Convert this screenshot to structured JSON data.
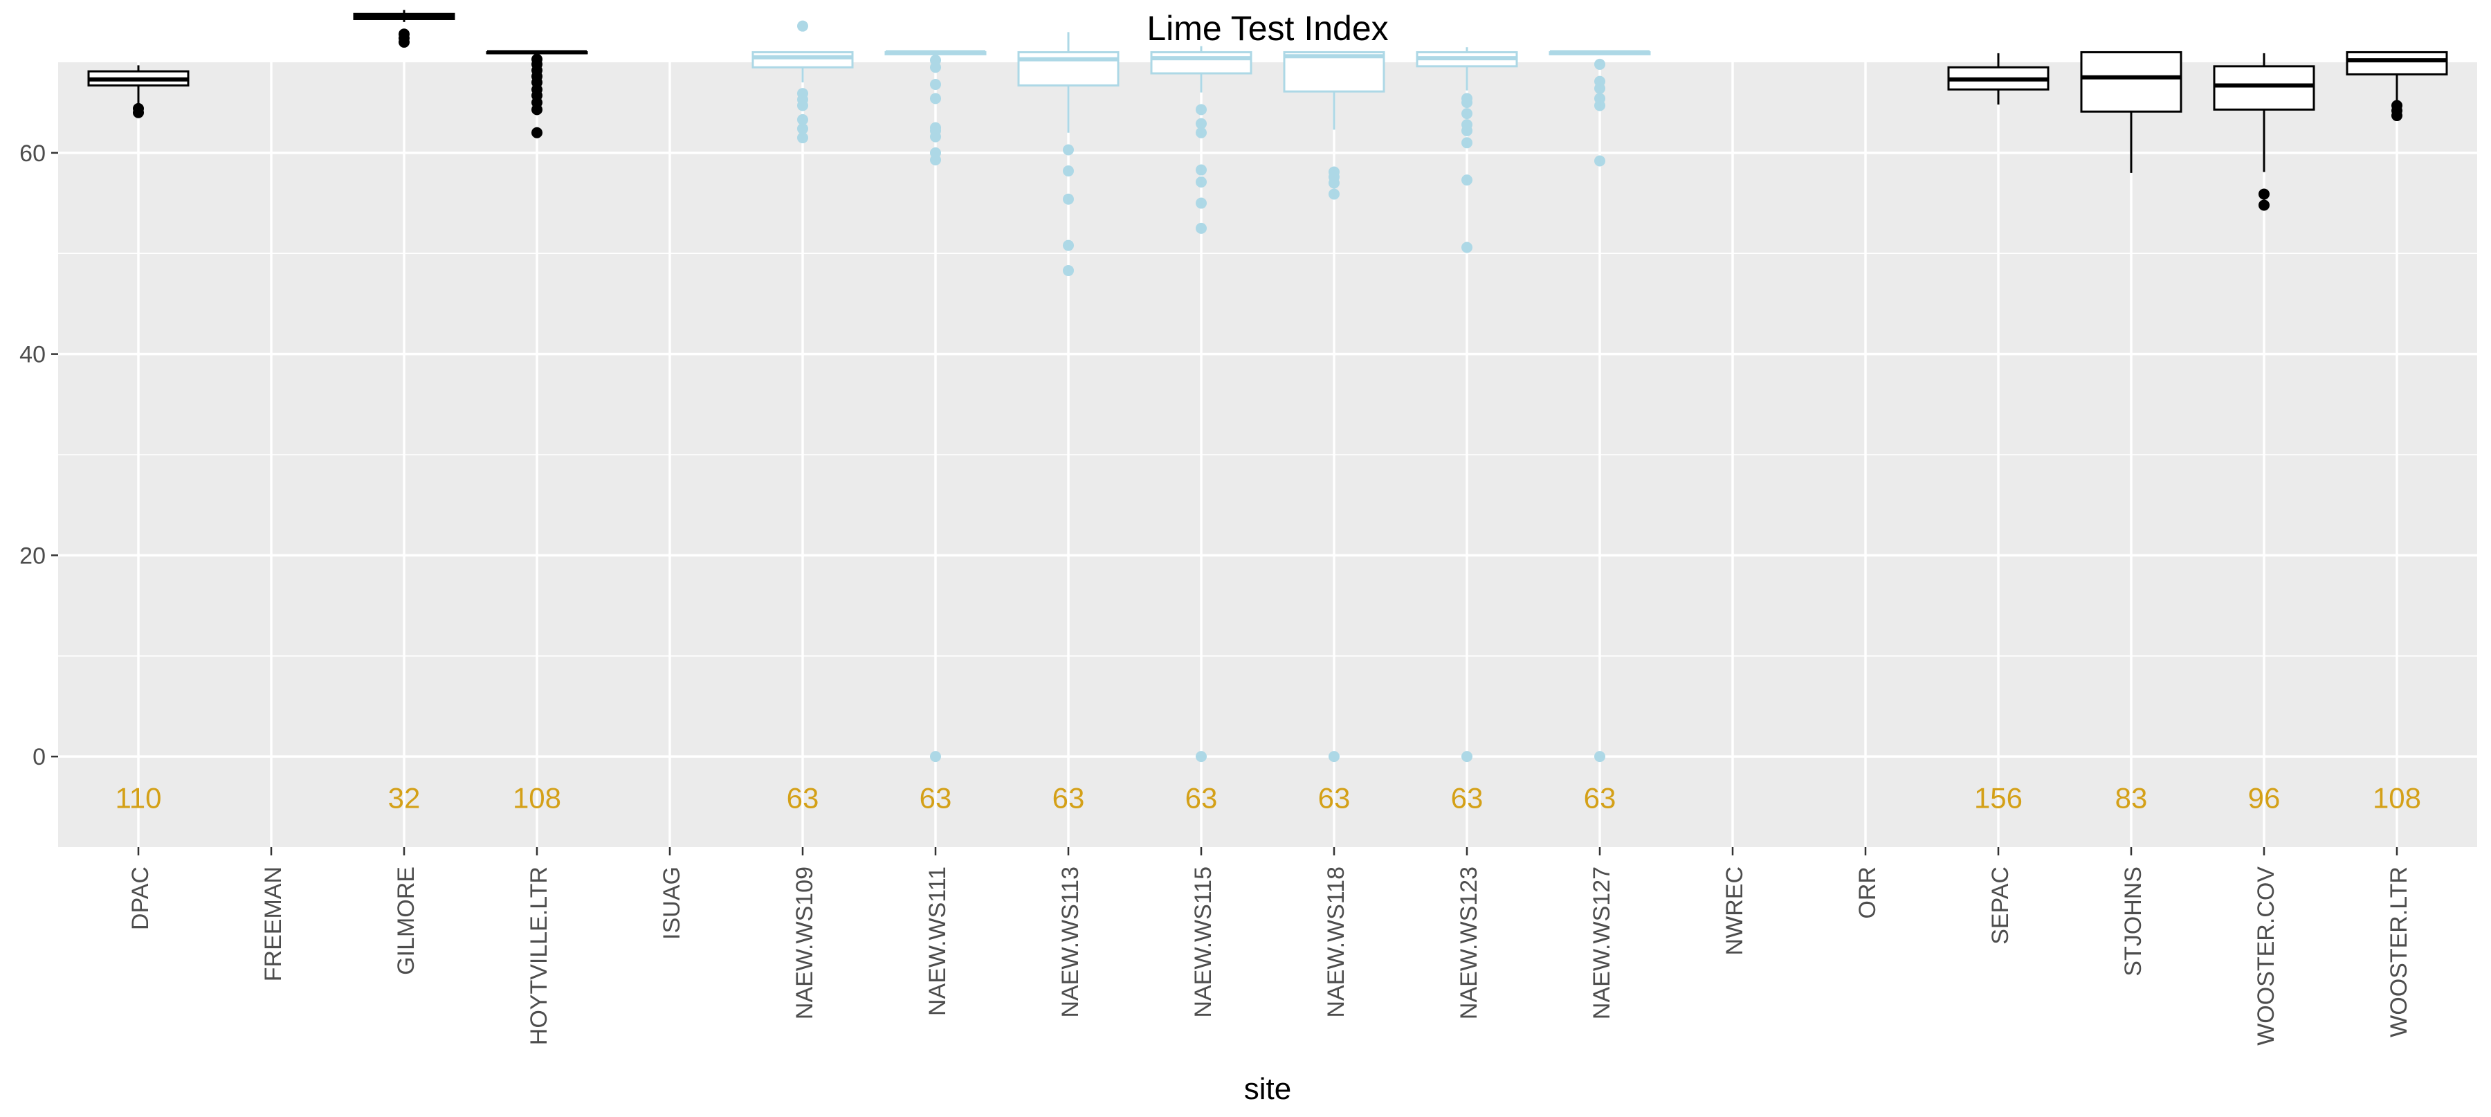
{
  "chart_data": {
    "type": "boxplot",
    "title": "Lime Test Index",
    "xlabel": "site",
    "ylabel": "",
    "ylim": [
      -9,
      69
    ],
    "yticks": [
      0,
      20,
      40,
      60
    ],
    "grid": true,
    "legend": "none",
    "colors": {
      "panel": "#EBEBEB",
      "grid_major": "#FFFFFF",
      "box_default": "#000000",
      "box_highlight": "#ADD8E6",
      "count_label": "#D4A017",
      "axis_text": "#4D4D4D",
      "title": "#000000"
    },
    "categories": [
      "DPAC",
      "FREEMAN",
      "GILMORE",
      "HOYTVILLE.LTR",
      "ISUAG",
      "NAEW.WS109",
      "NAEW.WS111",
      "NAEW.WS113",
      "NAEW.WS115",
      "NAEW.WS118",
      "NAEW.WS123",
      "NAEW.WS127",
      "NWREC",
      "ORR",
      "SEPAC",
      "STJOHNS",
      "WOOSTER.COV",
      "WOOSTER.LTR"
    ],
    "boxes": [
      {
        "site": "DPAC",
        "color": "#000000",
        "lower": 63.9,
        "q1": 66.7,
        "median": 67.3,
        "q3": 68.1,
        "upper": 68.7,
        "outliers": [
          64.0,
          64.4
        ]
      },
      {
        "site": "GILMORE",
        "color": "#000000",
        "lower": 73.0,
        "q1": 73.3,
        "median": 73.6,
        "q3": 73.8,
        "upper": 74.2,
        "outliers": [
          71.0,
          71.4,
          71.8
        ]
      },
      {
        "site": "HOYTVILLE.LTR",
        "color": "#000000",
        "lower": 69.9,
        "q1": 69.9,
        "median": 70.0,
        "q3": 70.0,
        "upper": 70.0,
        "outliers": [
          62.0,
          64.3,
          65.0,
          65.7,
          66.3,
          67.0,
          67.6,
          68.2,
          68.8,
          69.3
        ]
      },
      {
        "site": "NAEW.WS109",
        "color": "#ADD8E6",
        "lower": 67.0,
        "q1": 68.5,
        "median": 69.5,
        "q3": 70.0,
        "upper": 70.0,
        "outliers": [
          72.6,
          61.5,
          62.4,
          63.3,
          64.7,
          65.3,
          65.9
        ]
      },
      {
        "site": "NAEW.WS111",
        "color": "#ADD8E6",
        "lower": 69.5,
        "q1": 69.8,
        "median": 70.0,
        "q3": 70.0,
        "upper": 70.0,
        "outliers": [
          0.0,
          59.3,
          60.0,
          61.6,
          62.2,
          62.5,
          65.4,
          66.8,
          68.5,
          69.2
        ]
      },
      {
        "site": "NAEW.WS113",
        "color": "#ADD8E6",
        "lower": 62.0,
        "q1": 66.7,
        "median": 69.3,
        "q3": 70.0,
        "upper": 72.0,
        "outliers": [
          48.3,
          50.8,
          55.4,
          58.2,
          60.3
        ]
      },
      {
        "site": "NAEW.WS115",
        "color": "#ADD8E6",
        "lower": 66.0,
        "q1": 67.9,
        "median": 69.4,
        "q3": 70.0,
        "upper": 70.6,
        "outliers": [
          0.0,
          52.5,
          55.0,
          57.1,
          58.3,
          62.0,
          62.9,
          64.3
        ]
      },
      {
        "site": "NAEW.WS118",
        "color": "#ADD8E6",
        "lower": 62.3,
        "q1": 66.1,
        "median": 69.6,
        "q3": 70.0,
        "upper": 70.0,
        "outliers": [
          0.0,
          55.9,
          57.0,
          57.6,
          58.1
        ]
      },
      {
        "site": "NAEW.WS123",
        "color": "#ADD8E6",
        "lower": 66.2,
        "q1": 68.6,
        "median": 69.4,
        "q3": 70.0,
        "upper": 70.5,
        "outliers": [
          0.0,
          50.6,
          57.3,
          61.0,
          62.2,
          62.8,
          63.9,
          65.0,
          65.4
        ]
      },
      {
        "site": "NAEW.WS127",
        "color": "#ADD8E6",
        "lower": 69.8,
        "q1": 69.8,
        "median": 70.0,
        "q3": 70.0,
        "upper": 70.0,
        "outliers": [
          0.0,
          59.2,
          64.7,
          65.4,
          66.4,
          67.1,
          68.8
        ]
      },
      {
        "site": "SEPAC",
        "color": "#000000",
        "lower": 64.8,
        "q1": 66.3,
        "median": 67.3,
        "q3": 68.5,
        "upper": 69.9,
        "outliers": []
      },
      {
        "site": "STJOHNS",
        "color": "#000000",
        "lower": 58.0,
        "q1": 64.1,
        "median": 67.5,
        "q3": 70.0,
        "upper": 70.0,
        "outliers": []
      },
      {
        "site": "WOOSTER.COV",
        "color": "#000000",
        "lower": 58.1,
        "q1": 64.3,
        "median": 66.7,
        "q3": 68.6,
        "upper": 69.9,
        "outliers": [
          54.8,
          55.9
        ]
      },
      {
        "site": "WOOSTER.LTR",
        "color": "#000000",
        "lower": 65.1,
        "q1": 67.8,
        "median": 69.2,
        "q3": 70.0,
        "upper": 70.0,
        "outliers": [
          63.7,
          64.2,
          64.7
        ]
      }
    ],
    "counts": [
      {
        "site": "DPAC",
        "label": "110"
      },
      {
        "site": "GILMORE",
        "label": "32"
      },
      {
        "site": "HOYTVILLE.LTR",
        "label": "108"
      },
      {
        "site": "NAEW.WS109",
        "label": "63"
      },
      {
        "site": "NAEW.WS111",
        "label": "63"
      },
      {
        "site": "NAEW.WS113",
        "label": "63"
      },
      {
        "site": "NAEW.WS115",
        "label": "63"
      },
      {
        "site": "NAEW.WS118",
        "label": "63"
      },
      {
        "site": "NAEW.WS123",
        "label": "63"
      },
      {
        "site": "NAEW.WS127",
        "label": "63"
      },
      {
        "site": "SEPAC",
        "label": "156"
      },
      {
        "site": "STJOHNS",
        "label": "83"
      },
      {
        "site": "WOOSTER.COV",
        "label": "96"
      },
      {
        "site": "WOOSTER.LTR",
        "label": "108"
      }
    ],
    "count_label_y": -4
  }
}
